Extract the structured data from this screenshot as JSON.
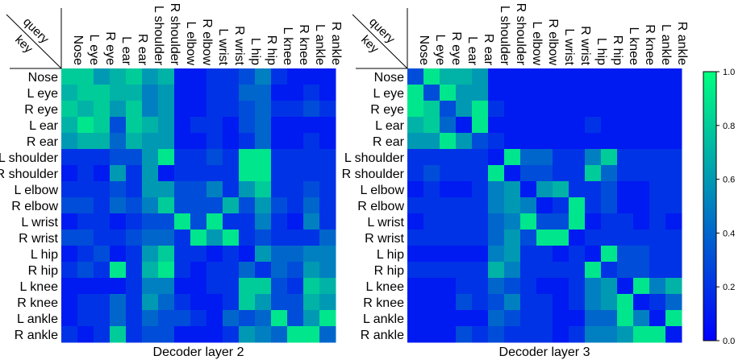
{
  "chart_data": {
    "type": "heatmap",
    "keypoints": [
      "Nose",
      "L eye",
      "R eye",
      "L ear",
      "R ear",
      "L shoulder",
      "R shoulder",
      "L elbow",
      "R elbow",
      "L wrist",
      "R wrist",
      "L hip",
      "R hip",
      "L knee",
      "R knee",
      "L ankle",
      "R ankle"
    ],
    "corner_label_top": "query",
    "corner_label_bottom": "key",
    "colorbar": {
      "min": 0.0,
      "max": 1.0,
      "ticks": [
        0.0,
        0.2,
        0.4,
        0.6,
        0.8,
        1.0
      ],
      "tick_labels": [
        "0.0",
        "0.2",
        "0.4",
        "0.6",
        "0.8",
        "1.0"
      ],
      "colors": [
        "#0000ff",
        "#00ff80"
      ]
    },
    "panels": [
      {
        "title": "Decoder layer 2",
        "matrix": [
          [
            0.8,
            0.8,
            0.6,
            0.7,
            0.8,
            0.6,
            0.7,
            0.1,
            0.1,
            0.2,
            0.2,
            0.3,
            0.5,
            0.2,
            0.1,
            0.1,
            0.1
          ],
          [
            0.7,
            0.8,
            0.8,
            0.7,
            0.7,
            0.5,
            0.6,
            0.1,
            0.1,
            0.2,
            0.2,
            0.4,
            0.4,
            0.1,
            0.1,
            0.2,
            0.1
          ],
          [
            0.8,
            0.7,
            0.8,
            0.6,
            0.8,
            0.5,
            0.6,
            0.1,
            0.1,
            0.2,
            0.2,
            0.3,
            0.4,
            0.2,
            0.2,
            0.3,
            0.2
          ],
          [
            0.7,
            0.9,
            0.8,
            0.3,
            0.8,
            0.7,
            0.6,
            0.1,
            0.2,
            0.2,
            0.1,
            0.3,
            0.4,
            0.1,
            0.1,
            0.1,
            0.1
          ],
          [
            0.6,
            0.7,
            0.7,
            0.4,
            0.7,
            0.6,
            0.6,
            0.1,
            0.1,
            0.2,
            0.1,
            0.2,
            0.4,
            0.1,
            0.1,
            0.2,
            0.1
          ],
          [
            0.2,
            0.2,
            0.2,
            0.3,
            0.3,
            0.6,
            0.9,
            0.2,
            0.2,
            0.3,
            0.2,
            0.9,
            0.9,
            0.2,
            0.2,
            0.2,
            0.2
          ],
          [
            0.1,
            0.2,
            0.1,
            0.6,
            0.2,
            0.6,
            0.1,
            0.2,
            0.2,
            0.2,
            0.2,
            0.9,
            0.9,
            0.2,
            0.2,
            0.2,
            0.2
          ],
          [
            0.2,
            0.2,
            0.2,
            0.3,
            0.2,
            0.6,
            0.6,
            0.3,
            0.3,
            0.5,
            0.2,
            0.6,
            0.8,
            0.2,
            0.2,
            0.3,
            0.2
          ],
          [
            0.3,
            0.3,
            0.2,
            0.4,
            0.3,
            0.5,
            0.8,
            0.3,
            0.3,
            0.3,
            0.7,
            0.3,
            0.6,
            0.3,
            0.2,
            0.4,
            0.2
          ],
          [
            0.1,
            0.2,
            0.2,
            0.1,
            0.2,
            0.3,
            0.3,
            0.9,
            0.3,
            0.9,
            0.2,
            0.2,
            0.5,
            0.2,
            0.1,
            0.5,
            0.2
          ],
          [
            0.3,
            0.3,
            0.2,
            0.2,
            0.3,
            0.4,
            0.4,
            0.2,
            0.9,
            0.6,
            0.9,
            0.2,
            0.3,
            0.2,
            0.2,
            0.2,
            0.4
          ],
          [
            0.1,
            0.2,
            0.3,
            0.1,
            0.2,
            0.6,
            0.8,
            0.2,
            0.2,
            0.1,
            0.2,
            0.1,
            0.6,
            0.4,
            0.4,
            0.5,
            0.5
          ],
          [
            0.2,
            0.3,
            0.2,
            0.9,
            0.2,
            0.7,
            0.9,
            0.2,
            0.1,
            0.2,
            0.2,
            0.4,
            0.2,
            0.4,
            0.3,
            0.6,
            0.5
          ],
          [
            0.1,
            0.1,
            0.1,
            0.1,
            0.2,
            0.5,
            0.5,
            0.1,
            0.1,
            0.2,
            0.2,
            0.8,
            0.8,
            0.3,
            0.2,
            0.8,
            0.7
          ],
          [
            0.1,
            0.2,
            0.2,
            0.4,
            0.2,
            0.6,
            0.4,
            0.2,
            0.1,
            0.1,
            0.2,
            0.8,
            0.6,
            0.3,
            0.3,
            0.7,
            0.6
          ],
          [
            0.1,
            0.2,
            0.2,
            0.4,
            0.2,
            0.4,
            0.3,
            0.3,
            0.2,
            0.1,
            0.4,
            0.3,
            0.4,
            0.9,
            0.3,
            0.6,
            0.9
          ],
          [
            0.2,
            0.1,
            0.2,
            0.8,
            0.2,
            0.3,
            0.3,
            0.1,
            0.1,
            0.1,
            0.2,
            0.6,
            0.5,
            0.4,
            0.9,
            0.9,
            0.4
          ]
        ]
      },
      {
        "title": "Decoder layer 3",
        "matrix": [
          [
            0.3,
            0.9,
            0.7,
            0.7,
            0.6,
            0.1,
            0.1,
            0.1,
            0.1,
            0.1,
            0.1,
            0.1,
            0.1,
            0.1,
            0.1,
            0.1,
            0.1
          ],
          [
            0.9,
            0.3,
            0.9,
            0.6,
            0.6,
            0.1,
            0.1,
            0.1,
            0.1,
            0.1,
            0.1,
            0.1,
            0.1,
            0.1,
            0.1,
            0.1,
            0.1
          ],
          [
            0.9,
            0.8,
            0.3,
            0.6,
            0.9,
            0.2,
            0.1,
            0.1,
            0.1,
            0.1,
            0.1,
            0.1,
            0.1,
            0.1,
            0.1,
            0.1,
            0.1
          ],
          [
            0.7,
            0.8,
            0.4,
            0.1,
            0.9,
            0.1,
            0.1,
            0.1,
            0.1,
            0.1,
            0.1,
            0.2,
            0.1,
            0.1,
            0.1,
            0.1,
            0.1
          ],
          [
            0.6,
            0.6,
            0.9,
            0.6,
            0.3,
            0.2,
            0.1,
            0.1,
            0.1,
            0.1,
            0.1,
            0.1,
            0.1,
            0.1,
            0.1,
            0.1,
            0.1
          ],
          [
            0.2,
            0.2,
            0.2,
            0.2,
            0.2,
            0.1,
            0.9,
            0.4,
            0.4,
            0.2,
            0.2,
            0.5,
            0.8,
            0.2,
            0.2,
            0.2,
            0.2
          ],
          [
            0.2,
            0.3,
            0.2,
            0.2,
            0.2,
            0.9,
            0.1,
            0.3,
            0.3,
            0.2,
            0.2,
            0.8,
            0.4,
            0.2,
            0.2,
            0.2,
            0.2
          ],
          [
            0.1,
            0.2,
            0.1,
            0.1,
            0.2,
            0.5,
            0.6,
            0.1,
            0.6,
            0.7,
            0.2,
            0.2,
            0.3,
            0.1,
            0.1,
            0.2,
            0.2
          ],
          [
            0.2,
            0.2,
            0.2,
            0.2,
            0.2,
            0.5,
            0.6,
            0.5,
            0.1,
            0.2,
            0.9,
            0.2,
            0.3,
            0.1,
            0.1,
            0.2,
            0.2
          ],
          [
            0.1,
            0.2,
            0.2,
            0.2,
            0.2,
            0.4,
            0.5,
            0.9,
            0.3,
            0.3,
            0.9,
            0.1,
            0.2,
            0.2,
            0.1,
            0.2,
            0.1
          ],
          [
            0.2,
            0.2,
            0.2,
            0.2,
            0.2,
            0.4,
            0.6,
            0.3,
            0.9,
            0.9,
            0.1,
            0.2,
            0.2,
            0.2,
            0.2,
            0.2,
            0.2
          ],
          [
            0.1,
            0.1,
            0.1,
            0.1,
            0.1,
            0.5,
            0.6,
            0.2,
            0.2,
            0.1,
            0.2,
            0.1,
            0.9,
            0.3,
            0.3,
            0.2,
            0.2
          ],
          [
            0.2,
            0.2,
            0.2,
            0.2,
            0.2,
            0.7,
            0.5,
            0.2,
            0.2,
            0.2,
            0.2,
            0.9,
            0.2,
            0.3,
            0.3,
            0.2,
            0.2
          ],
          [
            0.1,
            0.1,
            0.1,
            0.2,
            0.2,
            0.4,
            0.3,
            0.2,
            0.1,
            0.1,
            0.2,
            0.5,
            0.6,
            0.1,
            0.9,
            0.5,
            0.7
          ],
          [
            0.1,
            0.1,
            0.1,
            0.3,
            0.2,
            0.3,
            0.5,
            0.2,
            0.2,
            0.1,
            0.2,
            0.5,
            0.6,
            0.9,
            0.1,
            0.2,
            0.4
          ],
          [
            0.1,
            0.1,
            0.1,
            0.1,
            0.1,
            0.4,
            0.3,
            0.2,
            0.2,
            0.1,
            0.1,
            0.4,
            0.4,
            0.9,
            0.5,
            0.1,
            0.9
          ],
          [
            0.1,
            0.1,
            0.1,
            0.3,
            0.2,
            0.3,
            0.2,
            0.2,
            0.2,
            0.1,
            0.2,
            0.5,
            0.5,
            0.6,
            0.9,
            0.9,
            0.1
          ]
        ]
      }
    ]
  }
}
